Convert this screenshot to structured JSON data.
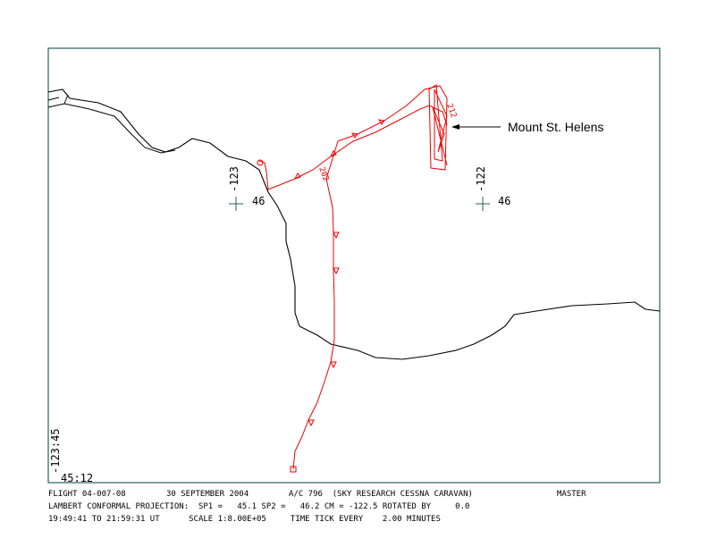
{
  "annotation": "Mount St. Helens",
  "grid_labels": [
    {
      "lon": "-123",
      "lat": "46"
    },
    {
      "lon": "-122",
      "lat": "46"
    }
  ],
  "corner": {
    "lon": "-123:45",
    "lat": "45:12"
  },
  "track_labels": [
    "202",
    "212"
  ],
  "footer": {
    "line1": [
      "FLIGHT 04-007-08",
      "30 SEPTEMBER 2004",
      "A/C 796  (SKY RESEARCH CESSNA CARAVAN)",
      "MASTER"
    ],
    "line2": "LAMBERT CONFORMAL PROJECTION:  SP1 =   45.1 SP2 =   46.2 CM = -122.5 ROTATED BY     0.0",
    "line3": "19:49:41 TO 21:59:31 UT      SCALE 1:8.00E+05     TIME TICK EVERY    2.00 MINUTES"
  }
}
